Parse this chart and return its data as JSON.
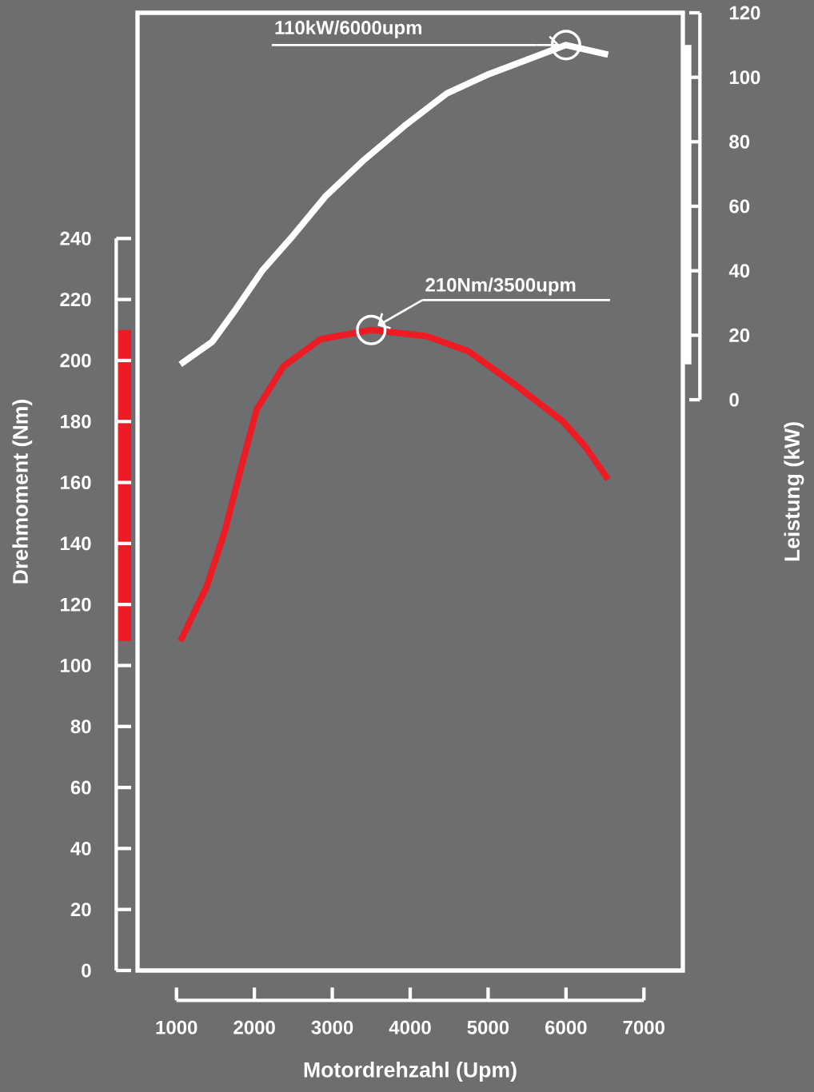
{
  "chart_data": {
    "type": "line",
    "xlabel": "Motordrehzahl (Upm)",
    "ylabel": "Drehmoment (Nm)",
    "y2label": "Leistung (kW)",
    "xlim": [
      500,
      7500
    ],
    "xticks": [
      1000,
      2000,
      3000,
      4000,
      5000,
      6000,
      7000
    ],
    "ylim": [
      0,
      314
    ],
    "yticks": [
      0,
      20,
      40,
      60,
      80,
      100,
      120,
      140,
      160,
      180,
      200,
      220,
      240
    ],
    "y2lim": [
      -177,
      120
    ],
    "y2ticks": [
      0,
      20,
      40,
      60,
      80,
      100,
      120
    ],
    "series": [
      {
        "color": "#ed1c24",
        "x": [
          1050,
          1390,
          1620,
          1830,
          2030,
          2370,
          2850,
          3500,
          4210,
          4750,
          5350,
          5960,
          6240,
          6540
        ],
        "values": [
          108,
          126,
          144,
          165,
          184,
          198,
          207,
          210,
          208,
          203,
          192,
          180,
          172,
          161
        ]
      },
      {
        "color": "#ffffff",
        "axis": "y2",
        "x": [
          1050,
          1460,
          1760,
          2100,
          2500,
          2910,
          3390,
          3930,
          4470,
          5010,
          5560,
          6000,
          6540
        ],
        "values": [
          11,
          18,
          28,
          40,
          51,
          63,
          74,
          85,
          95,
          101,
          106,
          110,
          107
        ]
      }
    ],
    "annotations": [
      "110kW/6000upm",
      {
        "text": "210Nm/3500upm",
        "x": 3500,
        "y": 210
      }
    ],
    "grid": false,
    "marker": "none",
    "line_style": "solid"
  }
}
